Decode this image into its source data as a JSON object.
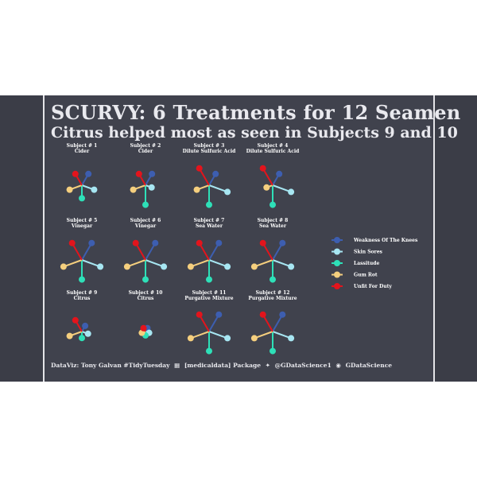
{
  "title": "SCURVY: 6 Treatments for 12 Seamen",
  "subtitle": "Citrus helped most as seen in Subjects 9 and 10",
  "caption": {
    "credit": "DataViz: Tony Galvan #TidyTuesday",
    "package": "[medicaldata] Package",
    "twitter": "@GDataScience1",
    "github": "GDataScience"
  },
  "colors": {
    "background": "#40424d",
    "text": "#ffffff",
    "weakness": "#3d5eb0",
    "skin": "#a7e6f2",
    "lassitude": "#2ee0b8",
    "gum": "#f5cf7e",
    "unfit": "#e3141c"
  },
  "icons": [
    "table-icon",
    "twitter-icon",
    "github-icon"
  ],
  "chart_data": {
    "type": "radial-glyph",
    "scale": "0 = none, 1 = mild, 2 = moderate, 3 = severe",
    "legend_position": "right",
    "series": [
      {
        "name": "Weakness Of The Knees",
        "key": "weakness",
        "color": "#3d5eb0"
      },
      {
        "name": "Skin Sores",
        "key": "skin",
        "color": "#a7e6f2"
      },
      {
        "name": "Lassitude",
        "key": "lassitude",
        "color": "#2ee0b8"
      },
      {
        "name": "Gum Rot",
        "key": "gum",
        "color": "#f5cf7e"
      },
      {
        "name": "Unfit For Duty",
        "key": "unfit",
        "color": "#e3141c"
      }
    ],
    "subjects": [
      {
        "label": "Subject # 1",
        "treatment": "Cider",
        "weakness": 2,
        "skin": 2,
        "lassitude": 2,
        "gum": 2,
        "unfit": 2
      },
      {
        "label": "Subject # 2",
        "treatment": "Cider",
        "weakness": 2,
        "skin": 1,
        "lassitude": 3,
        "gum": 2,
        "unfit": 2
      },
      {
        "label": "Subject # 3",
        "treatment": "Dilute Sulfuric Acid",
        "weakness": 2,
        "skin": 3,
        "lassitude": 3,
        "gum": 2,
        "unfit": 3
      },
      {
        "label": "Subject # 4",
        "treatment": "Dilute Sulfuric Acid",
        "weakness": 2,
        "skin": 3,
        "lassitude": 3,
        "gum": 1,
        "unfit": 3
      },
      {
        "label": "Subject # 5",
        "treatment": "Vinegar",
        "weakness": 3,
        "skin": 3,
        "lassitude": 3,
        "gum": 3,
        "unfit": 3
      },
      {
        "label": "Subject # 6",
        "treatment": "Vinegar",
        "weakness": 3,
        "skin": 3,
        "lassitude": 3,
        "gum": 3,
        "unfit": 3
      },
      {
        "label": "Subject # 7",
        "treatment": "Sea Water",
        "weakness": 3,
        "skin": 3,
        "lassitude": 3,
        "gum": 3,
        "unfit": 3
      },
      {
        "label": "Subject # 8",
        "treatment": "Sea Water",
        "weakness": 3,
        "skin": 3,
        "lassitude": 3,
        "gum": 3,
        "unfit": 3
      },
      {
        "label": "Subject # 9",
        "treatment": "Citrus",
        "weakness": 1,
        "skin": 1,
        "lassitude": 1,
        "gum": 2,
        "unfit": 2
      },
      {
        "label": "Subject # 10",
        "treatment": "Citrus",
        "weakness": 0,
        "skin": 0,
        "lassitude": 0,
        "gum": 0,
        "unfit": 0
      },
      {
        "label": "Subject # 11",
        "treatment": "Purgative Mixture",
        "weakness": 3,
        "skin": 3,
        "lassitude": 3,
        "gum": 3,
        "unfit": 3
      },
      {
        "label": "Subject # 12",
        "treatment": "Purgative Mixture",
        "weakness": 3,
        "skin": 3,
        "lassitude": 3,
        "gum": 3,
        "unfit": 3
      }
    ]
  }
}
